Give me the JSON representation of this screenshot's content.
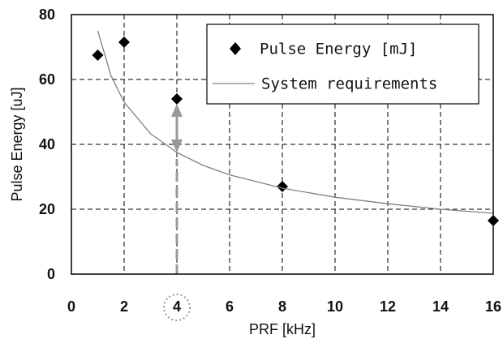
{
  "chart_data": {
    "type": "scatter",
    "xlabel": "PRF [kHz]",
    "ylabel": "Pulse Energy [uJ]",
    "xlim": [
      0,
      16
    ],
    "ylim": [
      0,
      80
    ],
    "xticks": [
      0,
      2,
      4,
      6,
      8,
      10,
      12,
      14,
      16
    ],
    "yticks": [
      0,
      20,
      40,
      60,
      80
    ],
    "grid": true,
    "legend": "upper right",
    "series": [
      {
        "name": "Pulse Energy [mJ]",
        "type": "scatter",
        "color": "#000000",
        "x": [
          1,
          2,
          4,
          8,
          16
        ],
        "values": [
          67.5,
          71.5,
          54,
          27,
          16.5
        ]
      },
      {
        "name": "System requirements",
        "type": "line",
        "color": "#808080",
        "x": [
          1,
          1.5,
          2,
          3,
          4,
          5,
          6,
          8,
          10,
          12,
          14,
          16
        ],
        "values": [
          75,
          61.2,
          53,
          43.3,
          37.5,
          33.5,
          30.6,
          26.5,
          23.7,
          21.7,
          20,
          18.75
        ]
      }
    ]
  }
}
